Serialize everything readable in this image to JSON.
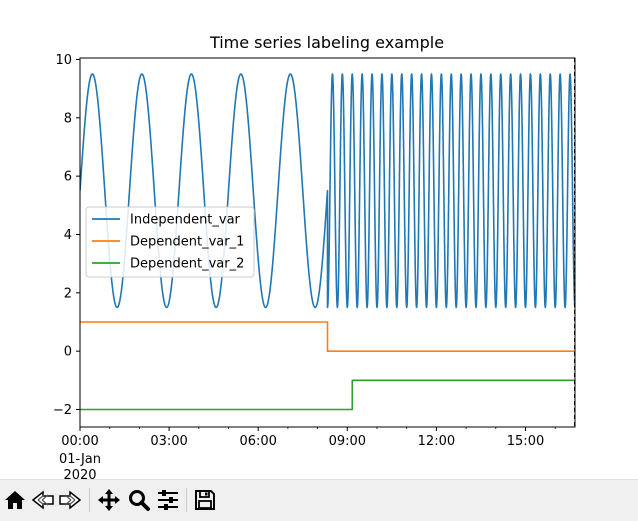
{
  "chart_data": {
    "type": "line",
    "title": "Time series labeling example",
    "xlabel": "",
    "ylabel": "",
    "xlim": [
      "2020-01-01 00:00",
      "2020-01-01 16:40"
    ],
    "ylim": [
      -2.6,
      10.05
    ],
    "y_ticks": [
      -2,
      0,
      2,
      4,
      6,
      8,
      10
    ],
    "y_tick_labels": [
      "−2",
      "0",
      "2",
      "4",
      "6",
      "8",
      "10"
    ],
    "x_ticks": [
      "00:00",
      "03:00",
      "06:00",
      "09:00",
      "12:00",
      "15:00"
    ],
    "x_tick_sublabels": [
      "01-Jan",
      "2020"
    ],
    "grid": false,
    "legend": "center-left",
    "series": [
      {
        "name": "Independent_var",
        "color": "#1f77b4",
        "description": "sinusoid oscillating between 1.5 and 9.5; slow period ~1h40m until ~08:20, then fast period ~20m",
        "min": 1.5,
        "max": 9.5,
        "segments": [
          {
            "start": "00:00",
            "end": "08:20",
            "period_minutes": 100
          },
          {
            "start": "08:20",
            "end": "16:40",
            "period_minutes": 20
          }
        ]
      },
      {
        "name": "Dependent_var_1",
        "color": "#ff7f0e",
        "x": [
          "00:00",
          "08:20",
          "08:20",
          "16:40"
        ],
        "y": [
          1,
          1,
          0,
          0
        ]
      },
      {
        "name": "Dependent_var_2",
        "color": "#2ca02c",
        "x": [
          "00:00",
          "09:10",
          "09:10",
          "16:40"
        ],
        "y": [
          -2,
          -2,
          -1,
          -1
        ]
      }
    ],
    "annotations": [
      {
        "type": "vertical-dashed-line",
        "x": "16:40",
        "color": "#000000"
      }
    ]
  },
  "toolbar": {
    "buttons": [
      {
        "name": "home-button",
        "icon": "home-icon"
      },
      {
        "name": "back-button",
        "icon": "back-arrow-icon"
      },
      {
        "name": "forward-button",
        "icon": "forward-arrow-icon"
      },
      {
        "name": "pan-button",
        "icon": "move-icon"
      },
      {
        "name": "zoom-button",
        "icon": "magnifier-icon"
      },
      {
        "name": "configure-subplots-button",
        "icon": "sliders-icon"
      },
      {
        "name": "save-button",
        "icon": "floppy-disk-icon"
      }
    ]
  }
}
